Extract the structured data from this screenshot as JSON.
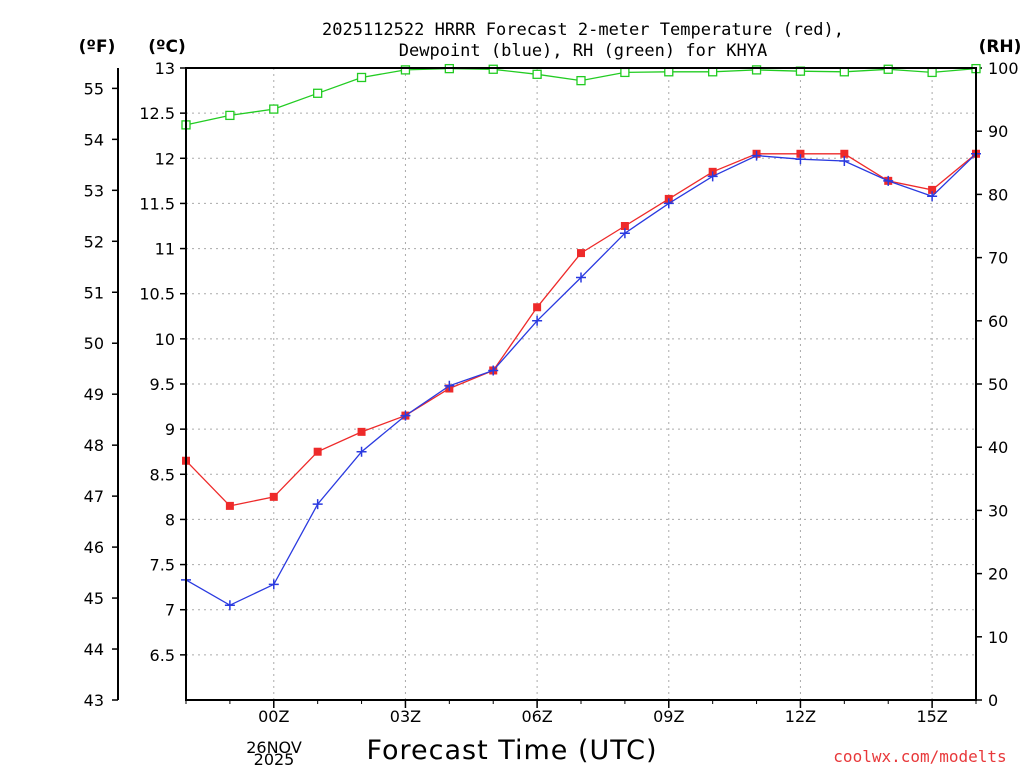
{
  "chart_data": {
    "type": "line",
    "title_line1": "2025112522 HRRR Forecast 2-meter Temperature (red),",
    "title_line2": "Dewpoint (blue), RH (green) for KHYA",
    "xlabel": "Forecast Time (UTC)",
    "credit": "coolwx.com/modelts",
    "unit_f": "(ºF)",
    "unit_c": "(ºC)",
    "unit_rh": "(RH)",
    "x_hours": [
      -2,
      -1,
      0,
      1,
      2,
      3,
      4,
      5,
      6,
      7,
      8,
      9,
      10,
      11,
      12,
      13,
      14,
      15,
      16
    ],
    "xlim": [
      -2,
      16
    ],
    "x_ticks": [
      {
        "hour": 0,
        "label": "00Z"
      },
      {
        "hour": 3,
        "label": "03Z"
      },
      {
        "hour": 6,
        "label": "06Z"
      },
      {
        "hour": 9,
        "label": "09Z"
      },
      {
        "hour": 12,
        "label": "12Z"
      },
      {
        "hour": 15,
        "label": "15Z"
      }
    ],
    "date_label_day": "26NOV",
    "date_label_year": "2025",
    "ylim_c": [
      6.0,
      13.0
    ],
    "ylim_f": [
      43.0,
      55.4
    ],
    "ylim_rh": [
      0,
      100
    ],
    "yticks_c": [
      "6.5",
      "7",
      "7.5",
      "8",
      "8.5",
      "9",
      "9.5",
      "10",
      "10.5",
      "11",
      "11.5",
      "12",
      "12.5",
      "13"
    ],
    "yticks_f": [
      "43",
      "44",
      "45",
      "46",
      "47",
      "48",
      "49",
      "50",
      "51",
      "52",
      "53",
      "54",
      "55"
    ],
    "yticks_rh": [
      "0",
      "10",
      "20",
      "30",
      "40",
      "50",
      "60",
      "70",
      "80",
      "90",
      "100"
    ],
    "series": [
      {
        "name": "Temperature",
        "color": "#ee2a2a",
        "marker": "filled-square",
        "axis": "celsius",
        "values": [
          8.65,
          8.15,
          8.25,
          8.75,
          8.97,
          9.15,
          9.45,
          9.65,
          10.35,
          10.95,
          11.25,
          11.55,
          11.85,
          12.05,
          12.05,
          12.05,
          11.75,
          11.65,
          12.05
        ]
      },
      {
        "name": "Dewpoint",
        "color": "#2a3ae0",
        "marker": "plus",
        "axis": "celsius",
        "values": [
          7.33,
          7.05,
          7.28,
          8.17,
          8.75,
          9.15,
          9.48,
          9.65,
          10.2,
          10.68,
          11.17,
          11.5,
          11.8,
          12.03,
          11.99,
          11.97,
          11.75,
          11.58,
          12.05
        ]
      },
      {
        "name": "RH",
        "color": "#22cc22",
        "marker": "open-square",
        "axis": "rh",
        "values": [
          91,
          92.5,
          93.5,
          96,
          98.5,
          99.7,
          99.9,
          99.8,
          99,
          98,
          99.3,
          99.4,
          99.4,
          99.7,
          99.5,
          99.4,
          99.8,
          99.3,
          99.9
        ]
      }
    ]
  }
}
